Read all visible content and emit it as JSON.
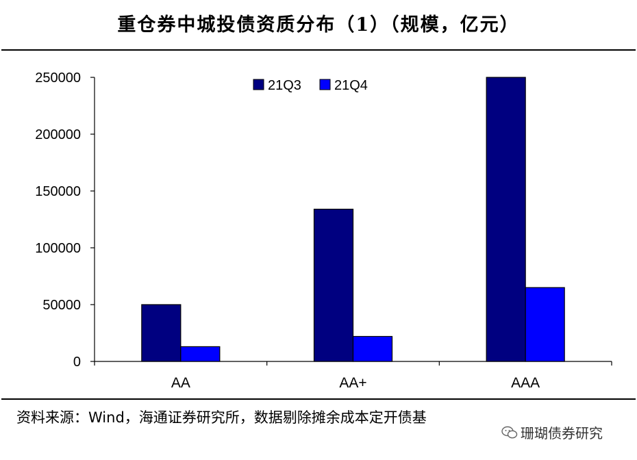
{
  "title": "重仓券中城投债资质分布（1）（规模，亿元）",
  "source": "资料来源：Wind，海通证券研究所，数据剔除摊余成本定开债基",
  "watermark": "珊瑚债券研究",
  "colors": {
    "21Q3": "#000080",
    "21Q4": "#0000FF"
  },
  "chart_data": {
    "type": "bar",
    "title": "重仓券中城投债资质分布（1）（规模，亿元）",
    "categories": [
      "AA",
      "AA+",
      "AAA"
    ],
    "series": [
      {
        "name": "21Q3",
        "values": [
          50000,
          134000,
          250000
        ]
      },
      {
        "name": "21Q4",
        "values": [
          13000,
          22000,
          65000
        ]
      }
    ],
    "ylim": [
      0,
      250000
    ],
    "yticks": [
      0,
      50000,
      100000,
      150000,
      200000,
      250000
    ],
    "xlabel": "",
    "ylabel": "",
    "grid": false,
    "legend": "top"
  }
}
